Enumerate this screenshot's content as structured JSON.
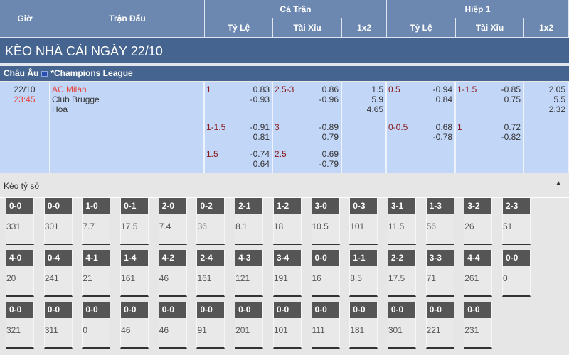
{
  "header": {
    "time": "Giờ",
    "match": "Trận Đấu",
    "full": "Cả Trận",
    "half": "Hiệp 1",
    "cols": [
      "Tỷ Lệ",
      "Tài Xỉu",
      "1x2",
      "Tỷ Lệ",
      "Tài Xỉu",
      "1x2"
    ]
  },
  "title": "KÈO NHÀ CÁI NGÀY 22/10",
  "league": {
    "region": "Châu Âu",
    "name": "*Champions League"
  },
  "match": {
    "date": "22/10",
    "time": "23:45",
    "home": "AC Milan",
    "away": "Club Brugge",
    "draw": "Hòa"
  },
  "rows": [
    {
      "ft_hdp": "1",
      "ft_hdp_o": [
        "0.83",
        "-0.93"
      ],
      "ft_ou": "2.5-3",
      "ft_ou_o": [
        "0.86",
        "-0.96"
      ],
      "ft_1x2": [
        "1.5",
        "5.9",
        "4.65"
      ],
      "h1_hdp": "0.5",
      "h1_hdp_o": [
        "-0.94",
        "0.84"
      ],
      "h1_ou": "1-1.5",
      "h1_ou_o": [
        "-0.85",
        "0.75"
      ],
      "h1_1x2": [
        "2.05",
        "5.5",
        "2.32"
      ]
    },
    {
      "ft_hdp": "1-1.5",
      "ft_hdp_o": [
        "-0.91",
        "0.81"
      ],
      "ft_ou": "3",
      "ft_ou_o": [
        "-0.89",
        "0.79"
      ],
      "h1_hdp": "0-0.5",
      "h1_hdp_o": [
        "0.68",
        "-0.78"
      ],
      "h1_ou": "1",
      "h1_ou_o": [
        "0.72",
        "-0.82"
      ]
    },
    {
      "ft_hdp": "1.5",
      "ft_hdp_o": [
        "-0.74",
        "0.64"
      ],
      "ft_ou": "2.5",
      "ft_ou_o": [
        "0.69",
        "-0.79"
      ]
    }
  ],
  "correct_score": {
    "label": "Kèo tỷ số",
    "collapse_icon": "triangle-up-icon",
    "rows": [
      [
        [
          "0-0",
          "331"
        ],
        [
          "0-0",
          "301"
        ],
        [
          "1-0",
          "7.7"
        ],
        [
          "0-1",
          "17.5"
        ],
        [
          "2-0",
          "7.4"
        ],
        [
          "0-2",
          "36"
        ],
        [
          "2-1",
          "8.1"
        ],
        [
          "1-2",
          "18"
        ],
        [
          "3-0",
          "10.5"
        ],
        [
          "0-3",
          "101"
        ],
        [
          "3-1",
          "11.5"
        ],
        [
          "1-3",
          "56"
        ],
        [
          "3-2",
          "26"
        ],
        [
          "2-3",
          "51"
        ]
      ],
      [
        [
          "4-0",
          "20"
        ],
        [
          "0-4",
          "241"
        ],
        [
          "4-1",
          "21"
        ],
        [
          "1-4",
          "161"
        ],
        [
          "4-2",
          "46"
        ],
        [
          "2-4",
          "161"
        ],
        [
          "4-3",
          "121"
        ],
        [
          "3-4",
          "191"
        ],
        [
          "0-0",
          "16"
        ],
        [
          "1-1",
          "8.5"
        ],
        [
          "2-2",
          "17.5"
        ],
        [
          "3-3",
          "71"
        ],
        [
          "4-4",
          "261"
        ],
        [
          "0-0",
          "0"
        ]
      ],
      [
        [
          "0-0",
          "321"
        ],
        [
          "0-0",
          "311"
        ],
        [
          "0-0",
          "0"
        ],
        [
          "0-0",
          "46"
        ],
        [
          "0-0",
          "46"
        ],
        [
          "0-0",
          "91"
        ],
        [
          "0-0",
          "201"
        ],
        [
          "0-0",
          "101"
        ],
        [
          "0-0",
          "111"
        ],
        [
          "0-0",
          "181"
        ],
        [
          "0-0",
          "301"
        ],
        [
          "0-0",
          "221"
        ],
        [
          "0-0",
          "231"
        ]
      ]
    ]
  }
}
